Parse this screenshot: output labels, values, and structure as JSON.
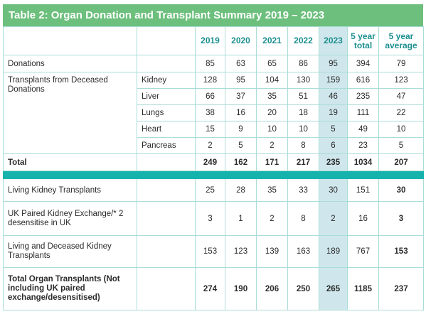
{
  "title": "Table 2: Organ Donation and Transplant Summary 2019 – 2023",
  "columns": [
    "2019",
    "2020",
    "2021",
    "2022",
    "2023",
    "5 year total",
    "5 year average"
  ],
  "donations": {
    "label": "Donations",
    "values": [
      "85",
      "63",
      "65",
      "86",
      "95",
      "394",
      "79"
    ]
  },
  "deceased": {
    "label": "Transplants from Deceased Donations",
    "organs": [
      {
        "name": "Kidney",
        "values": [
          "128",
          "95",
          "104",
          "130",
          "159",
          "616",
          "123"
        ]
      },
      {
        "name": "Liver",
        "values": [
          "66",
          "37",
          "35",
          "51",
          "46",
          "235",
          "47"
        ]
      },
      {
        "name": "Lungs",
        "values": [
          "38",
          "16",
          "20",
          "18",
          "19",
          "111",
          "22"
        ]
      },
      {
        "name": "Heart",
        "values": [
          "15",
          "9",
          "10",
          "10",
          "5",
          "49",
          "10"
        ]
      },
      {
        "name": "Pancreas",
        "values": [
          "2",
          "5",
          "2",
          "8",
          "6",
          "23",
          "5"
        ]
      }
    ]
  },
  "total": {
    "label": "Total",
    "values": [
      "249",
      "162",
      "171",
      "217",
      "235",
      "1034",
      "207"
    ]
  },
  "living": {
    "label": "Living Kidney Transplants",
    "values": [
      "25",
      "28",
      "35",
      "33",
      "30",
      "151",
      "30"
    ]
  },
  "paired": {
    "label": "UK Paired Kidney Exchange/* 2 desensitise in UK",
    "values": [
      "3",
      "1",
      "2",
      "8",
      "2",
      "16",
      "3"
    ]
  },
  "living_deceased": {
    "label": "Living and Deceased Kidney Transplants",
    "values": [
      "153",
      "123",
      "139",
      "163",
      "189",
      "767",
      "153"
    ]
  },
  "organ_total": {
    "label": "Total Organ Transplants (Not including UK paired exchange/desensitised)",
    "values": [
      "274",
      "190",
      "206",
      "250",
      "265",
      "1185",
      "237"
    ]
  },
  "colors": {
    "title_bar": "#6cbf7c",
    "separator": "#16b3ad",
    "highlight_column": "#cfe7ec",
    "header_text": "#1c8f8f"
  }
}
